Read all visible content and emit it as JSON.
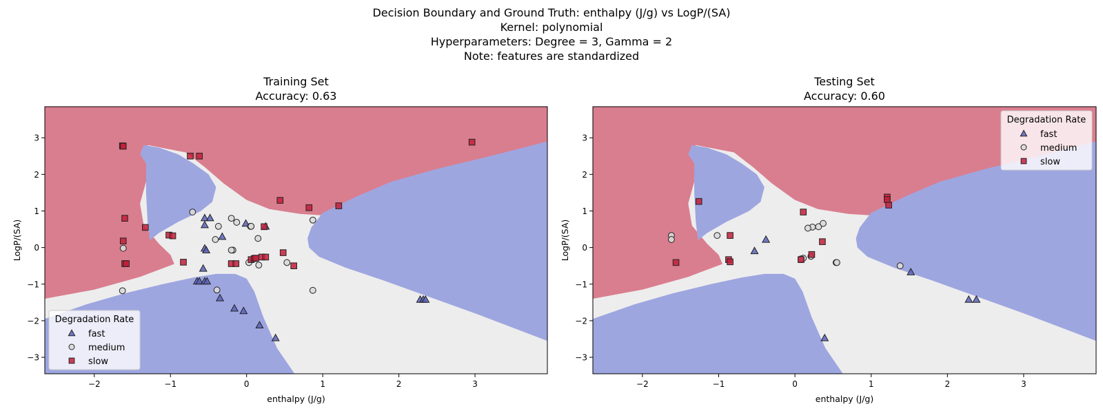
{
  "suptitle": {
    "line1": "Decision Boundary and Ground Truth: enthalpy (J/g) vs LogP/(SA)",
    "line2": "Kernel: polynomial",
    "line3": "Hyperparameters: Degree = 3, Gamma = 2",
    "line4": "Note: features are standardized"
  },
  "colors": {
    "fast": "#5a63b8",
    "medium": "#d9d9d9",
    "slow": "#c21e3a",
    "region_fast": "#9ea6e0",
    "region_medium": "#ededed",
    "region_slow": "#d97e8f"
  },
  "chart_data": [
    {
      "type": "scatter",
      "title": "Training Set",
      "subtitle": "Accuracy: 0.63",
      "xlabel": "enthalpy (J/g)",
      "ylabel": "LogP/(SA)",
      "xlim": [
        -2.65,
        3.95
      ],
      "ylim": [
        -3.45,
        3.85
      ],
      "xticks": [
        -2,
        -1,
        0,
        1,
        2,
        3
      ],
      "yticks": [
        -3,
        -2,
        -1,
        0,
        1,
        2,
        3
      ],
      "legend": {
        "title": "Degradation Rate",
        "position": "lower-left",
        "entries": [
          "fast",
          "medium",
          "slow"
        ]
      },
      "series": [
        {
          "name": "fast",
          "marker": "triangle",
          "x": [
            -0.55,
            -0.48,
            -0.55,
            -0.32,
            -0.55,
            -0.53,
            -0.57,
            -0.65,
            -0.62,
            -0.55,
            -0.52,
            -0.35,
            -0.16,
            -0.04,
            0.17,
            0.38,
            2.28,
            2.32,
            2.35,
            0.25,
            -0.01
          ],
          "y": [
            0.81,
            0.81,
            0.62,
            0.3,
            -0.02,
            -0.07,
            -0.57,
            -0.92,
            -0.92,
            -0.92,
            -0.92,
            -1.38,
            -1.66,
            -1.73,
            -2.12,
            -2.47,
            -1.42,
            -1.42,
            -1.42,
            0.58,
            0.66
          ]
        },
        {
          "name": "medium",
          "marker": "circle",
          "x": [
            -0.71,
            -0.37,
            -0.41,
            -0.2,
            -0.18,
            -0.13,
            0.05,
            0.06,
            0.15,
            0.03,
            0.16,
            0.53,
            0.87,
            0.87,
            -0.2,
            -0.39,
            -1.62,
            -1.63
          ],
          "y": [
            0.97,
            0.58,
            0.22,
            0.8,
            -0.07,
            0.69,
            0.58,
            0.58,
            0.25,
            -0.41,
            -0.48,
            -0.41,
            0.75,
            -1.17,
            -0.07,
            -1.16,
            -0.02,
            -1.18
          ]
        },
        {
          "name": "slow",
          "marker": "square",
          "x": [
            -1.63,
            -1.62,
            -0.74,
            -0.62,
            2.96,
            0.44,
            0.82,
            1.21,
            -1.6,
            -1.33,
            -1.62,
            -1.6,
            -1.58,
            -1.02,
            -0.97,
            -0.83,
            -0.2,
            -0.14,
            0.06,
            0.1,
            0.12,
            0.2,
            0.25,
            0.48,
            0.62,
            0.23
          ],
          "y": [
            2.78,
            2.77,
            2.5,
            2.5,
            2.88,
            1.29,
            1.09,
            1.14,
            0.8,
            0.55,
            0.18,
            -0.44,
            -0.44,
            0.34,
            0.32,
            -0.4,
            -0.44,
            -0.44,
            -0.33,
            -0.3,
            -0.29,
            -0.26,
            -0.26,
            -0.14,
            -0.5,
            0.57
          ]
        }
      ]
    },
    {
      "type": "scatter",
      "title": "Testing Set",
      "subtitle": "Accuracy: 0.60",
      "xlabel": "enthalpy (J/g)",
      "ylabel": "LogP/(SA)",
      "xlim": [
        -2.65,
        3.95
      ],
      "ylim": [
        -3.45,
        3.85
      ],
      "xticks": [
        -2,
        -1,
        0,
        1,
        2,
        3
      ],
      "yticks": [
        -3,
        -2,
        -1,
        0,
        1,
        2,
        3
      ],
      "legend": {
        "title": "Degradation Rate",
        "position": "upper-right",
        "entries": [
          "fast",
          "medium",
          "slow"
        ]
      },
      "series": [
        {
          "name": "fast",
          "marker": "triangle",
          "x": [
            -0.38,
            -0.53,
            1.52,
            2.28,
            2.38,
            0.39
          ],
          "y": [
            0.22,
            -0.09,
            -0.67,
            -1.42,
            -1.42,
            -2.47
          ]
        },
        {
          "name": "medium",
          "marker": "circle",
          "x": [
            -1.62,
            -1.62,
            -1.02,
            0.23,
            0.31,
            0.37,
            0.17,
            0.21,
            0.11,
            0.08,
            0.54,
            0.55,
            1.38
          ],
          "y": [
            0.33,
            0.22,
            0.33,
            0.56,
            0.57,
            0.66,
            0.53,
            -0.24,
            -0.29,
            -0.31,
            -0.41,
            -0.41,
            -0.5
          ]
        },
        {
          "name": "slow",
          "marker": "square",
          "x": [
            -1.26,
            -1.56,
            -0.85,
            -0.87,
            -0.85,
            0.11,
            0.22,
            0.08,
            0.36,
            1.21,
            1.21,
            1.23
          ],
          "y": [
            1.26,
            -0.41,
            0.33,
            -0.33,
            -0.39,
            0.97,
            -0.19,
            -0.33,
            0.16,
            1.38,
            1.31,
            1.16
          ]
        }
      ]
    }
  ]
}
